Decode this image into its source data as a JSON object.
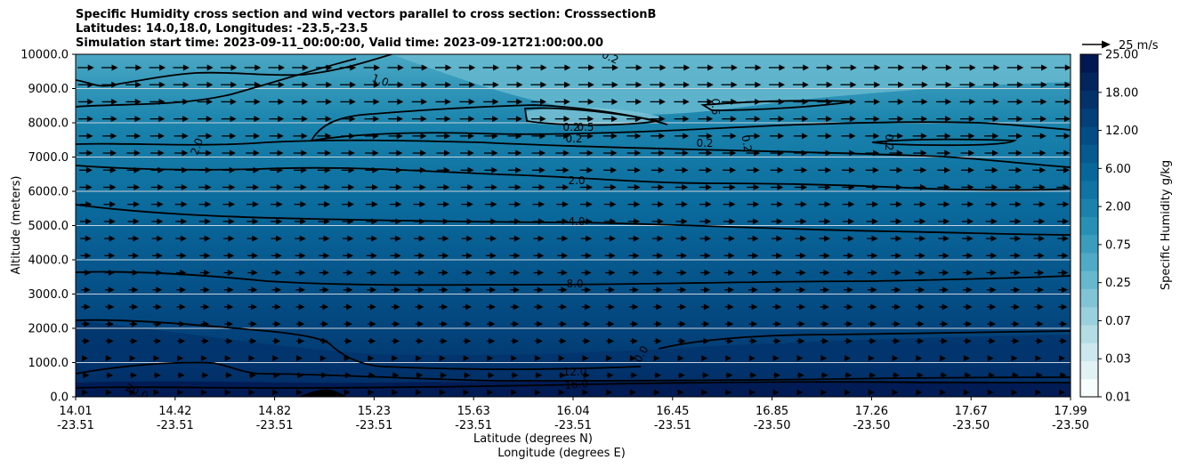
{
  "chart_data": {
    "type": "heatmap",
    "title_lines": [
      "Specific Humidity cross section and wind vectors parallel to cross section: CrosssectionB",
      "Latitudes: 14.0,18.0, Longitudes: -23.5,-23.5",
      "Simulation start time: 2023-09-11_00:00:00, Valid time: 2023-09-12T21:00:00.00"
    ],
    "ylabel": "Altitude (meters)",
    "xlabel_lines": [
      "Latitude (degrees N)",
      "Longitude (degrees E)"
    ],
    "ylim": [
      0,
      10000
    ],
    "y_ticks": [
      "0.0",
      "1000.0",
      "2000.0",
      "3000.0",
      "4000.0",
      "5000.0",
      "6000.0",
      "7000.0",
      "8000.0",
      "9000.0",
      "10000.0"
    ],
    "x_ticks": [
      {
        "lat": "14.01",
        "lon": "-23.51"
      },
      {
        "lat": "14.42",
        "lon": "-23.51"
      },
      {
        "lat": "14.82",
        "lon": "-23.51"
      },
      {
        "lat": "15.23",
        "lon": "-23.51"
      },
      {
        "lat": "15.63",
        "lon": "-23.51"
      },
      {
        "lat": "16.04",
        "lon": "-23.51"
      },
      {
        "lat": "16.45",
        "lon": "-23.51"
      },
      {
        "lat": "16.85",
        "lon": "-23.50"
      },
      {
        "lat": "17.26",
        "lon": "-23.50"
      },
      {
        "lat": "17.67",
        "lon": "-23.50"
      },
      {
        "lat": "17.99",
        "lon": "-23.50"
      }
    ],
    "colorbar": {
      "label": "Specific Humidity g/kg",
      "levels": [
        0.01,
        0.02,
        0.03,
        0.05,
        0.07,
        0.1,
        0.25,
        0.5,
        0.75,
        1.0,
        2.0,
        4.0,
        6.0,
        8.0,
        12.0,
        15.0,
        18.0,
        20.0,
        25.0
      ],
      "tick_labels": [
        "0.01",
        "0.03",
        "0.07",
        "0.25",
        "0.75",
        "2.00",
        "6.00",
        "12.00",
        "18.00",
        "25.00"
      ],
      "colors": [
        "#f7fcfd",
        "#e2f1f4",
        "#cce7ed",
        "#b3dce5",
        "#99d0de",
        "#80c4d6",
        "#66b8cf",
        "#4faac6",
        "#3a9dbd",
        "#2890b5",
        "#1a82ad",
        "#0f74a4",
        "#08679a",
        "#055a8f",
        "#034d84",
        "#033f78",
        "#03326b",
        "#02255e",
        "#011952"
      ]
    },
    "quiver_key": {
      "label": "25 m/s"
    },
    "contour_labels": [
      "0.2",
      "1.0",
      "0.2",
      "0.5",
      "0.2",
      "0.2",
      "0.5",
      "0.2",
      "0.2",
      "2.0",
      "2.0",
      "4.0",
      "8.0",
      "0.0",
      "12.0",
      "16.0",
      "20.0"
    ]
  }
}
